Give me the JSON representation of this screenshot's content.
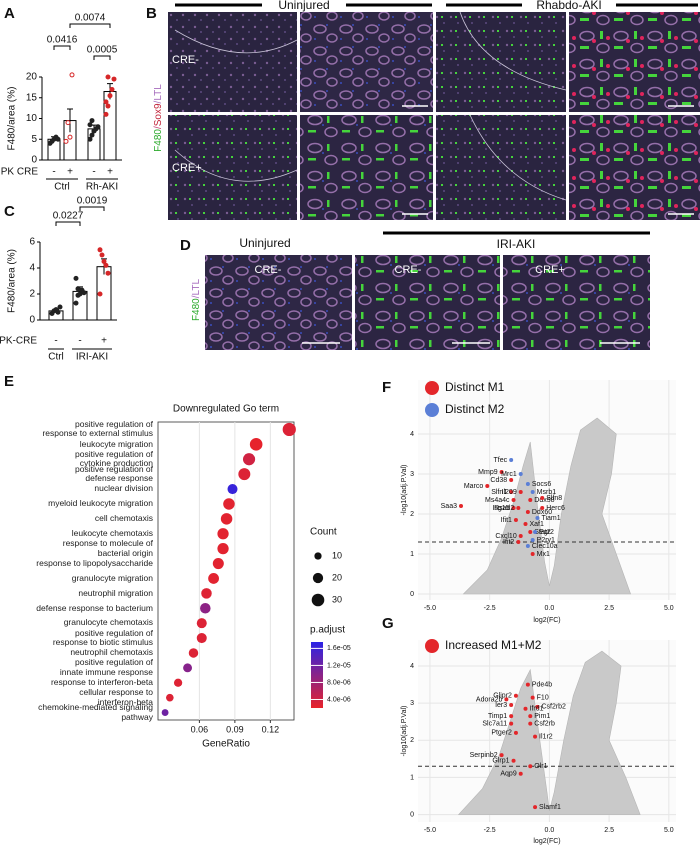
{
  "panel_labels": [
    "A",
    "B",
    "C",
    "D",
    "E",
    "F",
    "G"
  ],
  "image_panels": {
    "B": {
      "columns": [
        "Uninjured",
        "Rhabdo-AKI"
      ],
      "rows": [
        "CRE-",
        "CRE+"
      ],
      "stain": [
        "F480",
        "/",
        "Sox9",
        "/",
        "LTL"
      ]
    },
    "D": {
      "columns": [
        "Uninjured",
        "IRI-AKI"
      ],
      "labels": [
        "CRE-",
        "CRE-",
        "CRE+"
      ],
      "stain": [
        "F480",
        "/",
        "LTL"
      ]
    }
  },
  "chart_data": [
    {
      "type": "bar",
      "y_label": "F480/area (%)",
      "x_prefix": "PK CRE",
      "categories": [
        "-",
        "+",
        "-",
        "+"
      ],
      "groups": [
        "Ctrl",
        "Rh-AKI"
      ],
      "values": [
        5,
        9.5,
        7.5,
        16.5
      ],
      "errors": [
        0.6,
        2.8,
        0.9,
        1.9
      ],
      "points": [
        [
          4,
          4.5,
          5,
          5.5,
          5
        ],
        [
          4.5,
          9,
          5.5,
          20.5
        ],
        [
          5,
          6,
          7,
          7.5,
          8,
          8.5,
          9.5,
          7
        ],
        [
          11,
          13,
          15.5,
          17,
          19.5,
          14,
          20
        ]
      ],
      "point_colors": [
        "#222222",
        "#d62728",
        "#222222",
        "#d62728"
      ],
      "point_styles": [
        "filled",
        "open",
        "filled",
        "filled"
      ],
      "ylim": [
        0,
        20
      ],
      "yticks": [
        0,
        5,
        10,
        15,
        20
      ],
      "comparisons": [
        "0.0416",
        "0.0074",
        "0.0005"
      ]
    },
    {
      "type": "bar",
      "y_label": "F480/area (%)",
      "x_prefix": "PK-CRE",
      "categories": [
        "-",
        "-",
        "+"
      ],
      "groups": [
        "Ctrl",
        "IRI-AKI"
      ],
      "values": [
        0.7,
        2.2,
        4.1
      ],
      "errors": [
        0.12,
        0.35,
        0.6
      ],
      "points": [
        [
          0.5,
          0.7,
          0.8,
          0.6,
          1.0
        ],
        [
          1.3,
          1.9,
          2.0,
          2.3,
          2.1,
          3.2,
          2.4
        ],
        [
          5.4,
          5.0,
          4.5,
          4.2,
          3.6,
          2.0
        ]
      ],
      "point_colors": [
        "#222222",
        "#222222",
        "#d62728"
      ],
      "point_styles": [
        "filled",
        "filled",
        "filled"
      ],
      "ylim": [
        0,
        6
      ],
      "yticks": [
        0,
        2,
        4,
        6
      ],
      "comparisons": [
        "0.0227",
        "0.0019"
      ]
    },
    {
      "type": "dot",
      "title": "Downregulated Go term",
      "x_label": "GeneRatio",
      "categories": [
        "positive regulation of\nresponse to external stimulus",
        "leukocyte migration",
        "positive regulation of\ncytokine production",
        "positive regulation of\ndefense response",
        "nuclear division",
        "myeloid leukocyte migration",
        "cell chemotaxis",
        "leukocyte chemotaxis",
        "response to molecule of\nbacterial origin",
        "response to lipopolysaccharide",
        "granulocyte migration",
        "neutrophil migration",
        "defense response to bacterium",
        "granulocyte chemotaxis",
        "positive regulation of\nresponse to biotic stimulus",
        "neutrophil chemotaxis",
        "positive regulation of\ninnate immune response",
        "response to interferon-beta",
        "cellular response to\ninterferon-beta",
        "chemokine-mediated signaling\npathway"
      ],
      "values": [
        0.136,
        0.108,
        0.102,
        0.098,
        0.088,
        0.085,
        0.083,
        0.08,
        0.08,
        0.076,
        0.072,
        0.066,
        0.065,
        0.062,
        0.062,
        0.055,
        0.05,
        0.042,
        0.035,
        0.031
      ],
      "sizes": [
        33,
        30,
        28,
        27,
        19,
        25,
        25,
        24,
        24,
        23,
        22,
        21,
        21,
        19,
        19,
        17,
        15,
        13,
        11,
        9
      ],
      "color_values": [
        3e-06,
        2.2e-06,
        4e-06,
        3e-06,
        1.65e-05,
        2.5e-06,
        2.5e-06,
        2.5e-06,
        2.5e-06,
        2.5e-06,
        2.5e-06,
        2.8e-06,
        9.5e-06,
        3e-06,
        3e-06,
        3e-06,
        1e-05,
        2.8e-06,
        3e-06,
        1.2e-05
      ],
      "xlim": [
        0.025,
        0.14
      ],
      "xticks": [
        0.06,
        0.09,
        0.12
      ],
      "grid": true,
      "size_legend": {
        "title": "Count",
        "values": [
          10,
          20,
          30
        ]
      },
      "color_legend": {
        "title": "p.adjust",
        "clim": [
          2e-06,
          1.75e-05
        ],
        "colors": [
          "#e8232a",
          "#2b23e6"
        ],
        "ticks": [
          {
            "value": 1.6e-05,
            "label": "1.6e-05"
          },
          {
            "value": 1.2e-05,
            "label": "1.2e-05"
          },
          {
            "value": 8e-06,
            "label": "8.0e-06"
          },
          {
            "value": 4e-06,
            "label": "4.0e-06"
          }
        ]
      }
    },
    {
      "type": "volcano",
      "x_label": "log2(FC)",
      "y_label": "-log10(adj.P.Val)",
      "hline": 1.3,
      "xlim": [
        -5.5,
        5.3
      ],
      "ylim": [
        -0.15,
        5.35
      ],
      "xticks": [
        {
          "value": -5,
          "label": "-5.0"
        },
        -2.5,
        {
          "value": 0,
          "label": "0.0"
        },
        2.5,
        {
          "value": 5,
          "label": "5.0"
        }
      ],
      "yticks": [
        0,
        1,
        2,
        3,
        4
      ],
      "series": [
        {
          "name": "Distinct M1",
          "color": "#e3262a",
          "labels": [
            "Mmp9",
            "Cd38",
            "Marco",
            "Slfn1",
            "Il209",
            "Ms4a4c",
            "Ddx58",
            "Slfn8",
            "Isg15",
            "Rsad2",
            "Herc6",
            "Ddx60",
            "Ifit1",
            "Xaf1",
            "Stat2",
            "Cxcl10",
            "Ifit2",
            "Mx1",
            "Saa3"
          ],
          "x": [
            -2.0,
            -1.6,
            -2.6,
            -1.6,
            -1.2,
            -1.5,
            -0.8,
            -0.3,
            -1.5,
            -1.3,
            -0.3,
            -0.9,
            -1.4,
            -1.0,
            -0.8,
            -1.2,
            -1.3,
            -0.7,
            -3.7
          ],
          "values": [
            3.05,
            2.85,
            2.7,
            2.55,
            2.55,
            2.35,
            2.35,
            2.4,
            2.15,
            2.15,
            2.15,
            2.05,
            1.85,
            1.75,
            1.55,
            1.45,
            1.3,
            1.0,
            2.2
          ]
        },
        {
          "name": "Distinct M2",
          "color": "#5b7fd6",
          "labels": [
            "Tfec",
            "Mrc1",
            "Socs6",
            "Msrb1",
            "Tiam1",
            "Egr2",
            "P2ry1",
            "Clec10a"
          ],
          "x": [
            -1.6,
            -1.2,
            -0.9,
            -0.7,
            -0.5,
            -0.6,
            -0.7,
            -0.9
          ],
          "values": [
            3.35,
            3.0,
            2.75,
            2.55,
            1.9,
            1.55,
            1.35,
            1.2
          ]
        }
      ]
    },
    {
      "type": "volcano",
      "x_label": "log2(FC)",
      "y_label": "-log10(adj.P.Val)",
      "hline": 1.3,
      "xlim": [
        -5.5,
        5.3
      ],
      "ylim": [
        -0.2,
        4.7
      ],
      "xticks": [
        {
          "value": -5,
          "label": "-5.0"
        },
        -2.5,
        {
          "value": 0,
          "label": "0.0"
        },
        2.5,
        {
          "value": 5,
          "label": "5.0"
        }
      ],
      "yticks": [
        0,
        1,
        2,
        3,
        4
      ],
      "series": [
        {
          "name": "Increased M1+M2",
          "color": "#e3262a",
          "labels": [
            "Pde4b",
            "Glipr2",
            "F10",
            "Adora2b",
            "Csf2rb2",
            "Ier3",
            "Ifrd1",
            "Timp1",
            "Pim1",
            "Slc7a11",
            "Csf2rb",
            "Ptger2",
            "Il1r2",
            "Serpinb2",
            "Glrp1",
            "Aqp9",
            "Olr1",
            "Slamf1"
          ],
          "x": [
            -0.9,
            -1.4,
            -0.7,
            -1.8,
            -0.5,
            -1.6,
            -1.0,
            -1.6,
            -0.8,
            -1.6,
            -0.8,
            -1.4,
            -0.6,
            -2.0,
            -1.5,
            -1.2,
            -0.8,
            -0.6
          ],
          "values": [
            3.5,
            3.2,
            3.15,
            3.1,
            2.9,
            2.95,
            2.85,
            2.65,
            2.65,
            2.45,
            2.45,
            2.2,
            2.1,
            1.6,
            1.45,
            1.1,
            1.3,
            0.2
          ]
        }
      ]
    }
  ]
}
